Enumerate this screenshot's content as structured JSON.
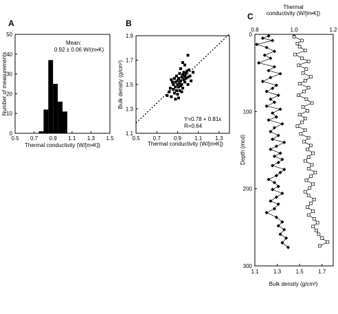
{
  "panels": {
    "A": {
      "letter": "A"
    },
    "B": {
      "letter": "B"
    },
    "C": {
      "letter": "C"
    }
  },
  "chart_data": [
    {
      "type": "bar",
      "panel": "A",
      "xlabel": "Thermal conductivity (W/[m•K])",
      "ylabel": "Number of measurements",
      "xlim": [
        0.5,
        1.5
      ],
      "ylim": [
        0,
        50
      ],
      "xticks": [
        "0.5",
        "0.7",
        "0.9",
        "1.1",
        "1.3",
        "1.5"
      ],
      "yticks": [
        "0",
        "10",
        "20",
        "30",
        "40",
        "50"
      ],
      "bin_edges": [
        0.75,
        0.8,
        0.85,
        0.9,
        0.95,
        1.0,
        1.05
      ],
      "values": [
        1,
        12,
        37,
        25,
        16,
        11
      ],
      "annotation_line1": "Mean:",
      "annotation_line2": "0.92 ± 0.06  W/(m•K)",
      "grid": false
    },
    {
      "type": "scatter",
      "panel": "B",
      "xlabel": "Thermal conductivity (W/[m•K])",
      "ylabel": "Bulk density (g/cm³)",
      "xlim": [
        0.5,
        1.4
      ],
      "ylim": [
        1.1,
        1.9
      ],
      "xticks": [
        "0.5",
        "0.7",
        "0.9",
        "1.1",
        "1.3"
      ],
      "yticks": [
        "1.1",
        "1.3",
        "1.5",
        "1.7",
        "1.9"
      ],
      "fit_label": "Y=0.78 + 0.81x",
      "r_label": "R=0.64",
      "fit": {
        "intercept": 0.78,
        "slope": 0.81,
        "x": [
          0.5,
          1.4
        ]
      },
      "points": [
        [
          0.8,
          1.41
        ],
        [
          0.82,
          1.44
        ],
        [
          0.83,
          1.47
        ],
        [
          0.84,
          1.4
        ],
        [
          0.85,
          1.52
        ],
        [
          0.86,
          1.46
        ],
        [
          0.86,
          1.5
        ],
        [
          0.87,
          1.43
        ],
        [
          0.87,
          1.55
        ],
        [
          0.88,
          1.48
        ],
        [
          0.88,
          1.52
        ],
        [
          0.89,
          1.45
        ],
        [
          0.89,
          1.57
        ],
        [
          0.9,
          1.5
        ],
        [
          0.9,
          1.53
        ],
        [
          0.9,
          1.42
        ],
        [
          0.91,
          1.48
        ],
        [
          0.91,
          1.55
        ],
        [
          0.92,
          1.51
        ],
        [
          0.92,
          1.59
        ],
        [
          0.92,
          1.45
        ],
        [
          0.93,
          1.53
        ],
        [
          0.93,
          1.49
        ],
        [
          0.93,
          1.63
        ],
        [
          0.94,
          1.56
        ],
        [
          0.94,
          1.5
        ],
        [
          0.95,
          1.58
        ],
        [
          0.95,
          1.47
        ],
        [
          0.95,
          1.68
        ],
        [
          0.96,
          1.54
        ],
        [
          0.96,
          1.6
        ],
        [
          0.97,
          1.52
        ],
        [
          0.97,
          1.57
        ],
        [
          0.98,
          1.59
        ],
        [
          0.98,
          1.55
        ],
        [
          0.99,
          1.61
        ],
        [
          1.0,
          1.56
        ],
        [
          1.0,
          1.5
        ],
        [
          1.01,
          1.62
        ],
        [
          1.02,
          1.57
        ],
        [
          1.03,
          1.53
        ],
        [
          1.05,
          1.6
        ],
        [
          0.91,
          1.39
        ],
        [
          0.88,
          1.38
        ],
        [
          0.94,
          1.44
        ],
        [
          1.0,
          1.74
        ],
        [
          0.97,
          1.66
        ],
        [
          0.84,
          1.54
        ]
      ],
      "grid": false
    },
    {
      "type": "line",
      "panel": "C",
      "top_label_line1": "Thermal",
      "top_label_line2": "conductivity  (W/[m•K])",
      "xlabel": "Bulk density (g/cm³)",
      "ylabel": "Depth (mcd)",
      "top_xlim": [
        0.8,
        1.2
      ],
      "top_xticks": [
        "0.8",
        "1.0",
        "1.2"
      ],
      "bottom_xlim": [
        1.1,
        1.8
      ],
      "bottom_xticks": [
        "1.1",
        "1.3",
        "1.5",
        "1.7"
      ],
      "ylim": [
        0,
        300
      ],
      "yticks": [
        "0",
        "100",
        "200",
        "300"
      ],
      "grid": false,
      "series": [
        {
          "name": "Thermal conductivity",
          "marker": "filled-diamond",
          "axis": "top",
          "depth": [
            2,
            5,
            8,
            13,
            17,
            22,
            27,
            31,
            37,
            42,
            47,
            51,
            56,
            61,
            66,
            70,
            74,
            79,
            84,
            88,
            93,
            97,
            102,
            107,
            111,
            116,
            121,
            126,
            131,
            136,
            140,
            145,
            149,
            154,
            158,
            162,
            166,
            170,
            175,
            179,
            183,
            188,
            192,
            197,
            201,
            206,
            211,
            216,
            220,
            226,
            231,
            237,
            243,
            248,
            253,
            259,
            264,
            270,
            276
          ],
          "values": [
            0.87,
            0.84,
            0.89,
            0.81,
            0.86,
            0.9,
            0.85,
            0.88,
            0.82,
            0.9,
            0.87,
            0.93,
            0.88,
            0.84,
            0.91,
            0.89,
            0.86,
            0.92,
            0.88,
            0.9,
            0.86,
            0.93,
            0.89,
            0.91,
            0.87,
            0.94,
            0.9,
            0.88,
            0.92,
            0.89,
            0.95,
            0.91,
            0.88,
            0.93,
            0.9,
            0.94,
            0.92,
            0.89,
            0.95,
            0.93,
            0.91,
            0.87,
            0.9,
            0.92,
            0.89,
            0.94,
            0.91,
            0.88,
            0.92,
            0.9,
            0.86,
            0.91,
            0.94,
            0.92,
            0.95,
            0.93,
            0.96,
            0.94,
            0.97
          ]
        },
        {
          "name": "Bulk density",
          "marker": "open-square",
          "axis": "bottom",
          "depth": [
            3,
            8,
            12,
            16,
            21,
            26,
            31,
            35,
            40,
            45,
            50,
            55,
            60,
            64,
            69,
            74,
            79,
            84,
            89,
            94,
            99,
            104,
            109,
            114,
            119,
            124,
            129,
            134,
            139,
            144,
            149,
            154,
            159,
            164,
            169,
            174,
            179,
            184,
            189,
            194,
            199,
            204,
            209,
            214,
            219,
            224,
            229,
            234,
            239,
            244,
            249,
            254,
            259,
            264,
            269,
            274
          ],
          "values": [
            1.45,
            1.52,
            1.48,
            1.5,
            1.55,
            1.46,
            1.52,
            1.58,
            1.49,
            1.56,
            1.53,
            1.6,
            1.55,
            1.5,
            1.58,
            1.54,
            1.49,
            1.56,
            1.61,
            1.53,
            1.57,
            1.5,
            1.55,
            1.52,
            1.48,
            1.55,
            1.51,
            1.58,
            1.54,
            1.6,
            1.57,
            1.62,
            1.58,
            1.55,
            1.61,
            1.58,
            1.64,
            1.6,
            1.56,
            1.62,
            1.59,
            1.55,
            1.58,
            1.63,
            1.6,
            1.57,
            1.62,
            1.58,
            1.63,
            1.66,
            1.62,
            1.65,
            1.67,
            1.7,
            1.75,
            1.68
          ]
        }
      ]
    }
  ]
}
